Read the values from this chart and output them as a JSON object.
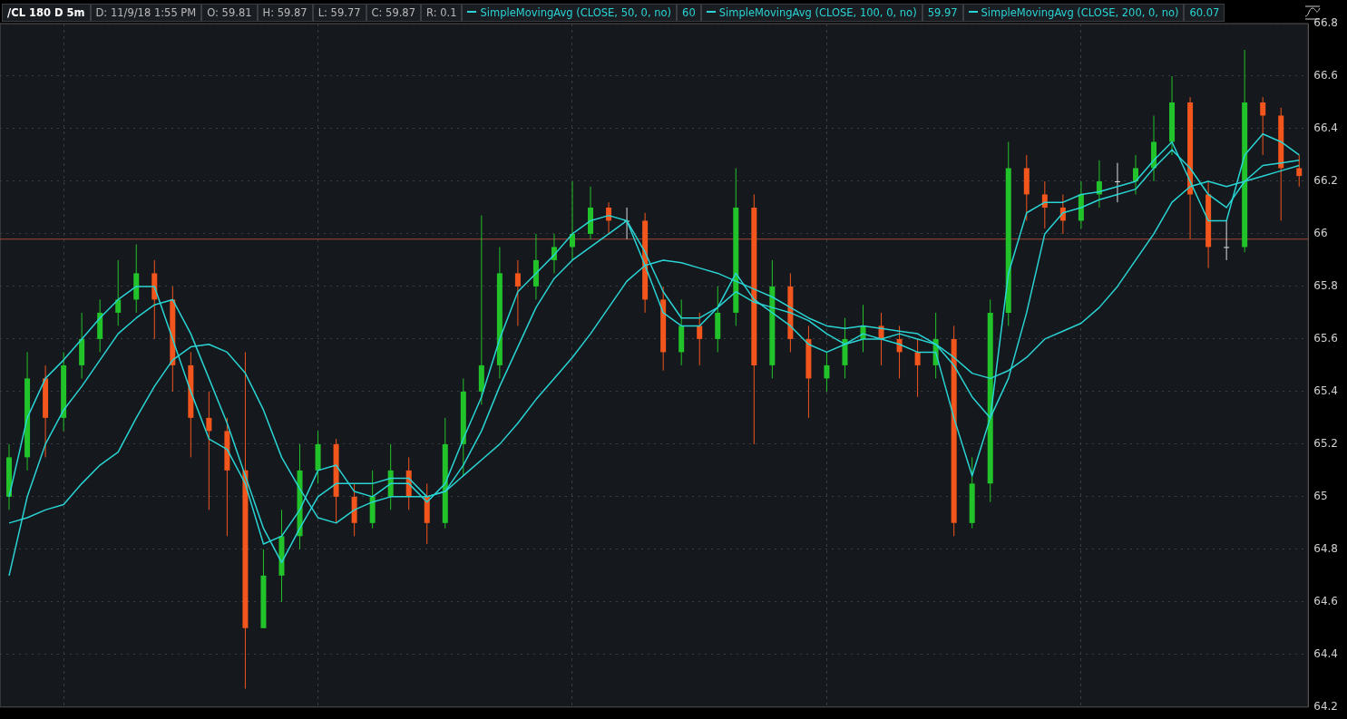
{
  "chart_data": {
    "type": "candlestick",
    "title": "/CL 180 D 5m",
    "annotations": [
      "D: 11/9/18 1:55 PM",
      "O: 59.81",
      "H: 59.87",
      "L: 59.77",
      "C: 59.87",
      "R: 0.1",
      "60",
      "59.97",
      "60.07"
    ],
    "categories": [
      null,
      null,
      null,
      null,
      null,
      null,
      null,
      null,
      null,
      null,
      null,
      null,
      null,
      null,
      null,
      null,
      null,
      null,
      null,
      null,
      null,
      null,
      null,
      null,
      null,
      null,
      null,
      null,
      null,
      null,
      null,
      null,
      null,
      null,
      null,
      null,
      null,
      null,
      null,
      null,
      null,
      null,
      null,
      null,
      null,
      null,
      null,
      null,
      null,
      null,
      null,
      null,
      null,
      null,
      null,
      null,
      null,
      null,
      null,
      null,
      null,
      null,
      null,
      null,
      null,
      null,
      null,
      null,
      null,
      null,
      null,
      null
    ],
    "ohlc": [
      [
        65.0,
        65.2,
        64.95,
        65.15
      ],
      [
        65.15,
        65.55,
        65.1,
        65.45
      ],
      [
        65.45,
        65.5,
        65.15,
        65.3
      ],
      [
        65.3,
        65.55,
        65.25,
        65.5
      ],
      [
        65.5,
        65.7,
        65.45,
        65.6
      ],
      [
        65.6,
        65.75,
        65.55,
        65.7
      ],
      [
        65.7,
        65.9,
        65.65,
        65.75
      ],
      [
        65.75,
        65.96,
        65.7,
        65.85
      ],
      [
        65.85,
        65.9,
        65.6,
        65.75
      ],
      [
        65.75,
        65.8,
        65.4,
        65.5
      ],
      [
        65.5,
        65.55,
        65.15,
        65.3
      ],
      [
        65.3,
        65.4,
        64.95,
        65.25
      ],
      [
        65.25,
        65.3,
        64.85,
        65.1
      ],
      [
        65.1,
        65.55,
        64.27,
        64.5
      ],
      [
        64.5,
        64.8,
        64.5,
        64.7
      ],
      [
        64.7,
        64.95,
        64.6,
        64.85
      ],
      [
        64.85,
        65.2,
        64.8,
        65.1
      ],
      [
        65.1,
        65.25,
        65.05,
        65.2
      ],
      [
        65.2,
        65.22,
        64.9,
        65.0
      ],
      [
        65.0,
        65.05,
        64.85,
        64.9
      ],
      [
        64.9,
        65.1,
        64.88,
        65.0
      ],
      [
        65.0,
        65.2,
        64.95,
        65.1
      ],
      [
        65.1,
        65.15,
        64.95,
        65.0
      ],
      [
        65.0,
        65.05,
        64.82,
        64.9
      ],
      [
        64.9,
        65.3,
        64.88,
        65.2
      ],
      [
        65.2,
        65.45,
        65.08,
        65.4
      ],
      [
        65.4,
        66.07,
        65.35,
        65.5
      ],
      [
        65.5,
        65.95,
        65.45,
        65.85
      ],
      [
        65.85,
        65.9,
        65.65,
        65.8
      ],
      [
        65.8,
        66.0,
        65.75,
        65.9
      ],
      [
        65.9,
        66.0,
        65.85,
        65.95
      ],
      [
        65.95,
        66.2,
        65.9,
        66.0
      ],
      [
        66.0,
        66.18,
        65.98,
        66.1
      ],
      [
        66.1,
        66.12,
        66.0,
        66.05
      ],
      [
        66.05,
        66.1,
        65.98,
        66.05
      ],
      [
        66.05,
        66.08,
        65.7,
        65.75
      ],
      [
        65.75,
        65.8,
        65.48,
        65.55
      ],
      [
        65.55,
        65.75,
        65.5,
        65.65
      ],
      [
        65.65,
        65.7,
        65.5,
        65.6
      ],
      [
        65.6,
        65.8,
        65.55,
        65.7
      ],
      [
        65.7,
        66.25,
        65.65,
        66.1
      ],
      [
        66.1,
        66.15,
        65.2,
        65.5
      ],
      [
        65.5,
        65.9,
        65.45,
        65.8
      ],
      [
        65.8,
        65.85,
        65.55,
        65.6
      ],
      [
        65.6,
        65.65,
        65.3,
        65.45
      ],
      [
        65.45,
        65.55,
        65.4,
        65.5
      ],
      [
        65.5,
        65.68,
        65.45,
        65.6
      ],
      [
        65.6,
        65.73,
        65.55,
        65.65
      ],
      [
        65.65,
        65.7,
        65.5,
        65.6
      ],
      [
        65.6,
        65.65,
        65.45,
        65.55
      ],
      [
        65.55,
        65.6,
        65.38,
        65.5
      ],
      [
        65.5,
        65.7,
        65.45,
        65.6
      ],
      [
        65.6,
        65.65,
        64.85,
        64.9
      ],
      [
        64.9,
        65.15,
        64.88,
        65.05
      ],
      [
        65.05,
        65.75,
        64.98,
        65.7
      ],
      [
        65.7,
        66.35,
        65.65,
        66.25
      ],
      [
        66.25,
        66.3,
        66.05,
        66.15
      ],
      [
        66.15,
        66.2,
        66.02,
        66.1
      ],
      [
        66.1,
        66.15,
        66.0,
        66.05
      ],
      [
        66.05,
        66.2,
        66.02,
        66.15
      ],
      [
        66.15,
        66.28,
        66.1,
        66.2
      ],
      [
        66.2,
        66.27,
        66.12,
        66.2
      ],
      [
        66.2,
        66.3,
        66.15,
        66.25
      ],
      [
        66.25,
        66.45,
        66.2,
        66.35
      ],
      [
        66.35,
        66.6,
        66.3,
        66.5
      ],
      [
        66.5,
        66.52,
        65.98,
        66.15
      ],
      [
        66.15,
        66.2,
        65.87,
        65.95
      ],
      [
        65.95,
        66.05,
        65.9,
        65.95
      ],
      [
        65.95,
        66.7,
        65.93,
        66.5
      ],
      [
        66.5,
        66.52,
        66.3,
        66.45
      ],
      [
        66.45,
        66.48,
        66.05,
        66.25
      ],
      [
        66.25,
        66.3,
        66.18,
        66.22
      ]
    ],
    "series": [
      {
        "type": "line",
        "name": "SimpleMovingAvg (CLOSE, 50, 0, no)",
        "color": "#2ad4d4",
        "values": [
          65.0,
          65.3,
          65.45,
          65.52,
          65.6,
          65.68,
          65.75,
          65.8,
          65.8,
          65.6,
          65.4,
          65.22,
          65.18,
          65.05,
          64.82,
          64.85,
          64.95,
          65.1,
          65.12,
          65.02,
          65.0,
          65.05,
          65.05,
          64.98,
          65.05,
          65.22,
          65.38,
          65.6,
          65.78,
          65.85,
          65.92,
          66.0,
          66.05,
          66.07,
          66.05,
          65.88,
          65.7,
          65.65,
          65.65,
          65.72,
          65.85,
          65.75,
          65.7,
          65.65,
          65.58,
          65.55,
          65.58,
          65.62,
          65.6,
          65.58,
          65.55,
          65.55,
          65.3,
          65.08,
          65.3,
          65.85,
          66.08,
          66.12,
          66.12,
          66.15,
          66.16,
          66.18,
          66.2,
          66.28,
          66.35,
          66.2,
          66.05,
          66.05,
          66.3,
          66.38,
          66.35,
          66.3
        ]
      },
      {
        "type": "line",
        "name": "SimpleMovingAvg (CLOSE, 100, 0, no)",
        "color": "#2ad4d4",
        "values": [
          64.7,
          65.0,
          65.2,
          65.33,
          65.42,
          65.52,
          65.62,
          65.68,
          65.73,
          65.75,
          65.62,
          65.45,
          65.28,
          65.08,
          64.88,
          64.75,
          64.88,
          65.0,
          65.05,
          65.05,
          65.05,
          65.07,
          65.07,
          65.0,
          65.02,
          65.12,
          65.25,
          65.42,
          65.57,
          65.72,
          65.83,
          65.9,
          65.95,
          66.0,
          66.05,
          65.93,
          65.78,
          65.68,
          65.68,
          65.72,
          65.78,
          65.74,
          65.72,
          65.7,
          65.67,
          65.62,
          65.58,
          65.6,
          65.6,
          65.62,
          65.6,
          65.58,
          65.5,
          65.38,
          65.3,
          65.45,
          65.7,
          66.0,
          66.08,
          66.1,
          66.13,
          66.15,
          66.17,
          66.25,
          66.32,
          66.25,
          66.15,
          66.1,
          66.2,
          66.26,
          66.27,
          66.28
        ]
      },
      {
        "type": "line",
        "name": "SimpleMovingAvg (CLOSE, 200, 0, no)",
        "color": "#2ad4d4",
        "values": [
          64.9,
          64.92,
          64.95,
          64.97,
          65.05,
          65.12,
          65.17,
          65.3,
          65.42,
          65.52,
          65.57,
          65.58,
          65.55,
          65.47,
          65.33,
          65.15,
          65.03,
          64.92,
          64.9,
          64.95,
          64.98,
          65.0,
          65.0,
          65.0,
          65.02,
          65.08,
          65.14,
          65.2,
          65.28,
          65.37,
          65.45,
          65.53,
          65.62,
          65.72,
          65.82,
          65.88,
          65.9,
          65.89,
          65.87,
          65.85,
          65.82,
          65.79,
          65.76,
          65.72,
          65.68,
          65.65,
          65.64,
          65.65,
          65.64,
          65.63,
          65.62,
          65.58,
          65.53,
          65.47,
          65.45,
          65.48,
          65.53,
          65.6,
          65.63,
          65.66,
          65.72,
          65.8,
          65.9,
          66.0,
          66.12,
          66.18,
          66.2,
          66.18,
          66.2,
          66.22,
          66.24,
          66.26
        ]
      }
    ],
    "ylim": [
      64.2,
      66.8
    ],
    "yticks": [
      64.2,
      64.4,
      64.6,
      64.8,
      65,
      65.2,
      65.4,
      65.6,
      65.8,
      66,
      66.2,
      66.4,
      66.6,
      66.8
    ],
    "ref_lines": [
      {
        "axis": "y",
        "value": 65.98,
        "color": "#a04a3c",
        "line_style": "solid"
      }
    ],
    "grid": true,
    "legend": "top",
    "tick_labels": "y",
    "marker": "none",
    "line_style": "solid"
  }
}
